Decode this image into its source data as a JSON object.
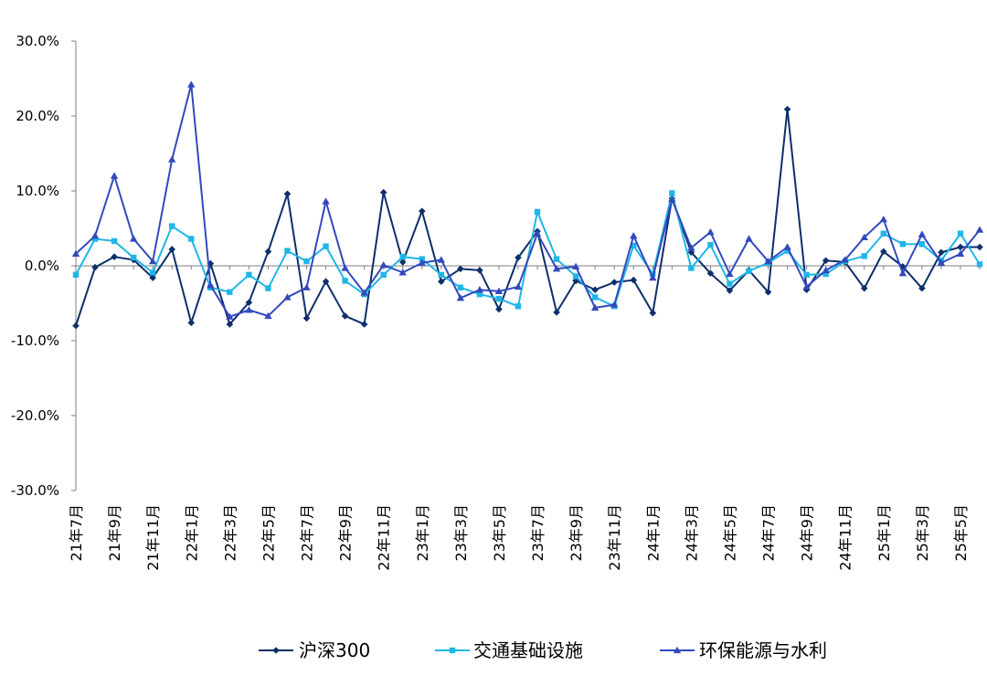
{
  "chart_data": {
    "type": "line",
    "title": "",
    "xlabel": "",
    "ylabel": "",
    "ylim": [
      -30,
      30
    ],
    "y_ticks": [
      -30,
      -20,
      -10,
      0,
      10,
      20,
      30
    ],
    "y_tick_labels": [
      "-30.0%",
      "-20.0%",
      "-10.0%",
      "0.0%",
      "10.0%",
      "20.0%",
      "30.0%"
    ],
    "legend_position": "bottom",
    "x": [
      "21年7月",
      "21年8月",
      "21年9月",
      "21年10月",
      "21年11月",
      "21年12月",
      "22年1月",
      "22年2月",
      "22年3月",
      "22年4月",
      "22年5月",
      "22年6月",
      "22年7月",
      "22年8月",
      "22年9月",
      "22年10月",
      "22年11月",
      "22年12月",
      "23年1月",
      "23年2月",
      "23年3月",
      "23年4月",
      "23年5月",
      "23年6月",
      "23年7月",
      "23年8月",
      "23年9月",
      "23年10月",
      "23年11月",
      "23年12月",
      "24年1月",
      "24年2月",
      "24年3月",
      "24年4月",
      "24年5月",
      "24年6月",
      "24年7月",
      "24年8月",
      "24年9月",
      "24年10月",
      "24年11月",
      "24年12月",
      "25年1月",
      "25年2月",
      "25年3月",
      "25年4月",
      "25年5月",
      "25年6月"
    ],
    "x_tick_labels": [
      "21年7月",
      "21年9月",
      "21年11月",
      "22年1月",
      "22年3月",
      "22年5月",
      "22年7月",
      "22年9月",
      "22年11月",
      "23年1月",
      "23年3月",
      "23年5月",
      "23年7月",
      "23年9月",
      "23年11月",
      "24年1月",
      "24年3月",
      "24年5月",
      "24年7月",
      "24年9月",
      "24年11月",
      "25年1月",
      "25年3月",
      "25年5月"
    ],
    "series": [
      {
        "name": "沪深300",
        "color": "#0d2f6b",
        "marker": "diamond",
        "values": [
          -8.0,
          -0.2,
          1.2,
          0.8,
          -1.6,
          2.2,
          -7.6,
          0.3,
          -7.8,
          -4.9,
          1.9,
          9.6,
          -7.0,
          -2.1,
          -6.7,
          -7.8,
          9.8,
          0.5,
          7.3,
          -2.1,
          -0.4,
          -0.6,
          -5.8,
          1.1,
          4.6,
          -6.2,
          -2.0,
          -3.2,
          -2.2,
          -1.9,
          -6.3,
          9.0,
          1.8,
          -1.0,
          -3.3,
          -0.6,
          -3.5,
          20.9,
          -3.2,
          0.7,
          0.5,
          -3.0,
          1.9,
          -0.1,
          -3.0,
          1.8,
          2.5,
          2.5
        ]
      },
      {
        "name": "交通基础设施",
        "color": "#1eb6e6",
        "marker": "square",
        "values": [
          -1.2,
          3.6,
          3.3,
          1.1,
          -0.9,
          5.3,
          3.6,
          -2.9,
          -3.5,
          -1.2,
          -3.0,
          2.0,
          0.6,
          2.6,
          -2.0,
          -3.8,
          -1.2,
          1.2,
          0.9,
          -1.2,
          -2.9,
          -3.8,
          -4.4,
          -5.4,
          7.2,
          0.9,
          -1.4,
          -4.2,
          -5.4,
          2.7,
          -1.1,
          9.7,
          -0.3,
          2.8,
          -2.4,
          -0.7,
          0.4,
          2.0,
          -1.2,
          -1.1,
          0.6,
          1.3,
          4.3,
          2.9,
          2.9,
          0.7,
          4.3,
          0.2
        ]
      },
      {
        "name": "环保能源与水利",
        "color": "#3349bd",
        "marker": "triangle",
        "values": [
          1.6,
          4.0,
          12.0,
          3.6,
          0.6,
          14.2,
          24.2,
          -2.6,
          -6.8,
          -5.9,
          -6.7,
          -4.2,
          -2.9,
          8.6,
          -0.3,
          -3.6,
          0.1,
          -0.9,
          0.4,
          0.8,
          -4.3,
          -3.2,
          -3.4,
          -2.8,
          4.3,
          -0.4,
          -0.1,
          -5.6,
          -5.2,
          4.0,
          -1.6,
          8.9,
          2.4,
          4.5,
          -1.1,
          3.6,
          0.6,
          2.5,
          -2.8,
          -0.6,
          0.8,
          3.8,
          6.2,
          -1.0,
          4.2,
          0.4,
          1.6,
          4.8
        ]
      }
    ]
  }
}
